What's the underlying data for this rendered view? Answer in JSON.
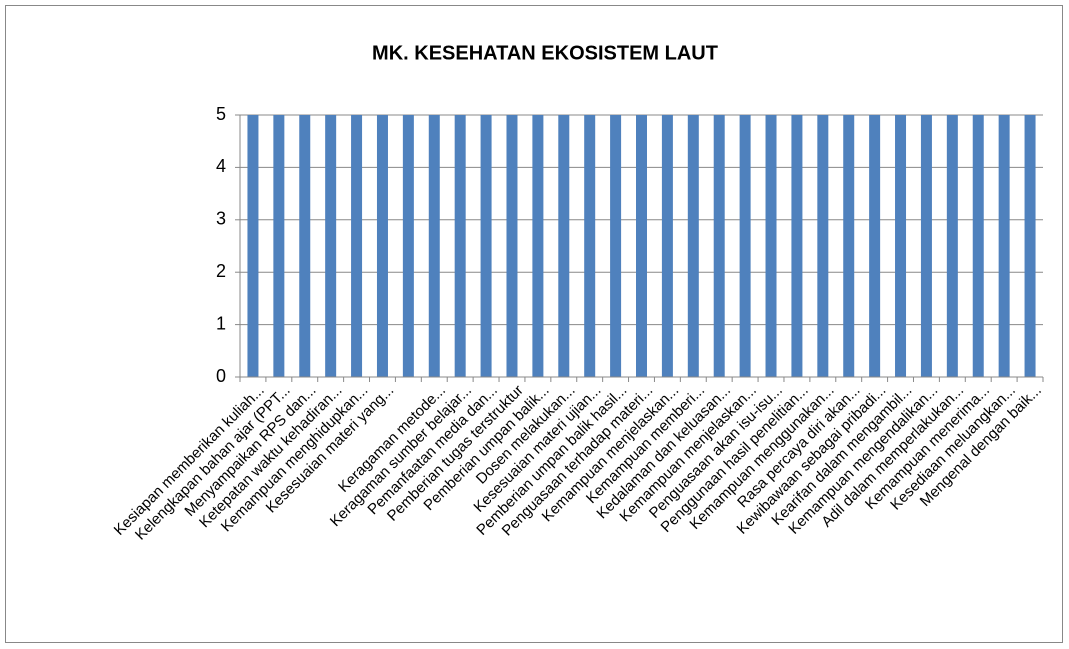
{
  "chart_data": {
    "type": "bar",
    "title": "MK. KESEHATAN EKOSISTEM LAUT",
    "categories": [
      "Kesiapan memberikan kuliah...",
      "Kelengkapan bahan ajar (PPT...",
      "Menyampaikan RPS dan...",
      "Ketepatan waktu kehadiran...",
      "Kemampuan menghidupkan...",
      "Kesesuaian materi yang...",
      null,
      "Keragaman metode...",
      "Keragaman sumber belajar...",
      "Pemanfaatan media dan...",
      "Pemberian tugas terstruktur",
      "Pemberian umpan balik...",
      "Dosen melakukan...",
      "Kesesuaian materi ujian...",
      "Pemberian umpan balik hasil...",
      "Penguasaan terhadap materi...",
      "Kemampuan menjelaskan...",
      "Kemampuan memberi...",
      "Kedalaman dan keluasan...",
      "Kemampuan menjelaskan...",
      "Penguasaan akan isu-isu...",
      "Penggunaan hasil penelitian...",
      "Kemampuan menggunakan...",
      "Rasa percaya diri akan...",
      "Kewibawaan sebagai pribadi...",
      "Kearifan dalam mengambil...",
      "Kemampuan mengendalikan...",
      "Adil dalam memperlakukan...",
      "Kemampuan menerima...",
      "Kesediaan meluangkan...",
      "Mengenal dengan baik..."
    ],
    "values": [
      5,
      5,
      5,
      5,
      5,
      5,
      5,
      5,
      5,
      5,
      5,
      5,
      5,
      5,
      5,
      5,
      5,
      5,
      5,
      5,
      5,
      5,
      5,
      5,
      5,
      5,
      5,
      5,
      5,
      5,
      5
    ],
    "color": "#4f81bd",
    "ylim": [
      0,
      5
    ],
    "yticks": [
      0,
      1,
      2,
      3,
      4,
      5
    ],
    "grid": true
  }
}
